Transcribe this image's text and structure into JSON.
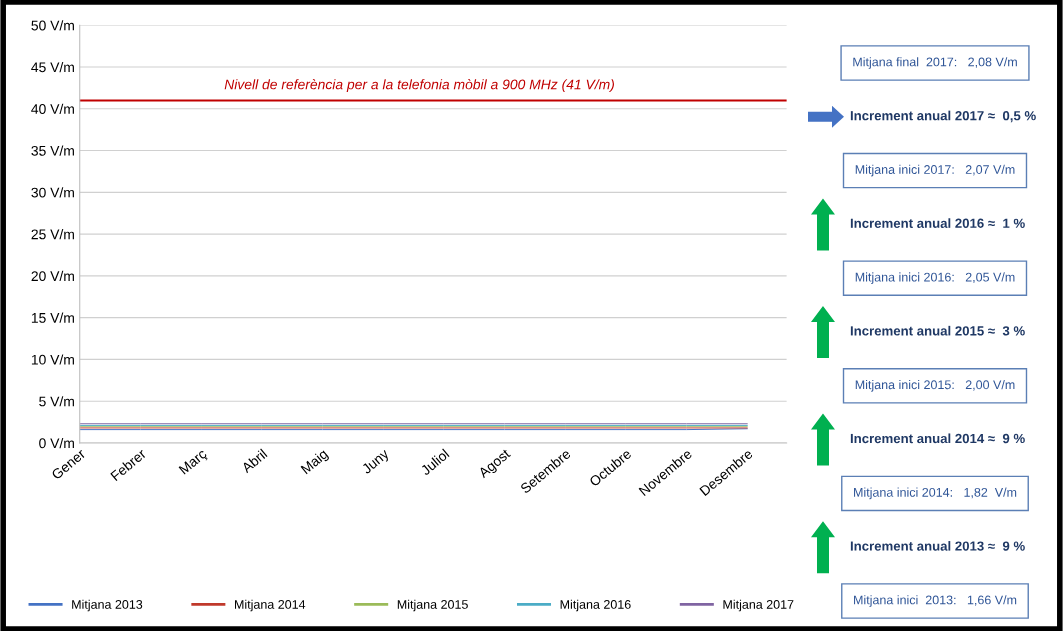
{
  "chart_data": {
    "type": "line",
    "categories": [
      "Gener",
      "Febrer",
      "Març",
      "Abril",
      "Maig",
      "Juny",
      "Juliol",
      "Agost",
      "Setembre",
      "Octubre",
      "Novembre",
      "Desembre"
    ],
    "series": [
      {
        "name": "Mitjana 2013",
        "color": "#4472c4",
        "values": [
          1.6,
          1.6,
          1.6,
          1.6,
          1.6,
          1.6,
          1.6,
          1.6,
          1.6,
          1.6,
          1.6,
          1.7
        ]
      },
      {
        "name": "Mitjana 2014",
        "color": "#c0392b",
        "values": [
          1.8,
          1.8,
          1.8,
          1.8,
          1.8,
          1.8,
          1.8,
          1.8,
          1.8,
          1.8,
          1.8,
          1.8
        ]
      },
      {
        "name": "Mitjana 2015",
        "color": "#9bbb59",
        "values": [
          2.0,
          2.0,
          2.0,
          2.0,
          2.0,
          2.0,
          2.0,
          2.0,
          2.0,
          2.0,
          2.0,
          2.0
        ]
      },
      {
        "name": "Mitjana 2016",
        "color": "#4bacc6",
        "values": [
          2.1,
          2.1,
          2.1,
          2.1,
          2.1,
          2.1,
          2.1,
          2.1,
          2.1,
          2.1,
          2.1,
          2.1
        ]
      },
      {
        "name": "Mitjana 2017",
        "color": "#8064a2",
        "values": [
          2.3,
          2.3,
          2.3,
          2.3,
          2.3,
          2.3,
          2.3,
          2.3,
          2.3,
          2.3,
          2.3,
          2.3
        ]
      }
    ],
    "ylim": [
      0,
      50
    ],
    "yticks": [
      {
        "value": 0,
        "label": "0 V/m"
      },
      {
        "value": 5,
        "label": "5 V/m"
      },
      {
        "value": 10,
        "label": "10 V/m"
      },
      {
        "value": 15,
        "label": "15 V/m"
      },
      {
        "value": 20,
        "label": "20 V/m"
      },
      {
        "value": 25,
        "label": "25 V/m"
      },
      {
        "value": 30,
        "label": "30 V/m"
      },
      {
        "value": 35,
        "label": "35 V/m"
      },
      {
        "value": 40,
        "label": "40 V/m"
      },
      {
        "value": 45,
        "label": "45 V/m"
      },
      {
        "value": 50,
        "label": "50 V/m"
      }
    ],
    "grid": "y",
    "legend": "bottom",
    "marker": "none",
    "line_style": "solid",
    "ref_lines": [
      {
        "axis": "y",
        "value": 41,
        "label": "Nivell de referència per a la telefonia mòbil a 900 MHz (41 V/m)",
        "color": "#c00000"
      }
    ],
    "annotations": [
      "Mitjana final  2017:   2,08 V/m",
      "Increment anual 2017 ≈  0,5 %",
      "Mitjana inici 2017:   2,07 V/m",
      "Increment anual 2016 ≈  1 %",
      "Mitjana inici 2016:   2,05 V/m",
      "Increment anual 2015 ≈  3 %",
      "Mitjana inici 2015:   2,00 V/m",
      "Increment anual 2014 ≈  9 %",
      "Mitjana inici 2014:   1,82  V/m",
      "Increment anual 2013 ≈  9 %",
      "Mitjana inici  2013:   1,66 V/m"
    ]
  }
}
